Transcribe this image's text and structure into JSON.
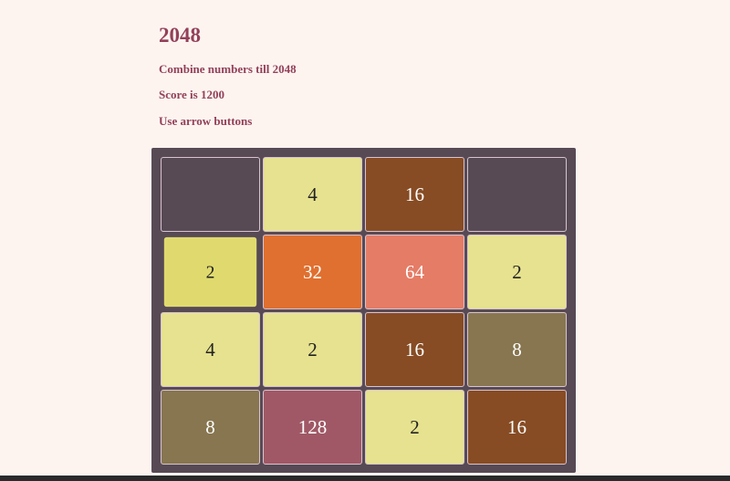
{
  "header": {
    "title": "2048",
    "subtitle": "Combine numbers till 2048",
    "score_text": "Score is 1200",
    "instructions": "Use arrow buttons"
  },
  "board": {
    "rows": [
      [
        "",
        "4",
        "16",
        ""
      ],
      [
        "2",
        "32",
        "64",
        "2"
      ],
      [
        "4",
        "2",
        "16",
        "8"
      ],
      [
        "8",
        "128",
        "2",
        "16"
      ]
    ],
    "colors": {
      "empty": "#574a55",
      "2": "#e6e28f",
      "4": "#e6e28f",
      "8": "#877650",
      "16": "#874c24",
      "32": "#e07030",
      "64": "#e57c66",
      "128": "#a05866",
      "new": "#e0da6e"
    }
  }
}
